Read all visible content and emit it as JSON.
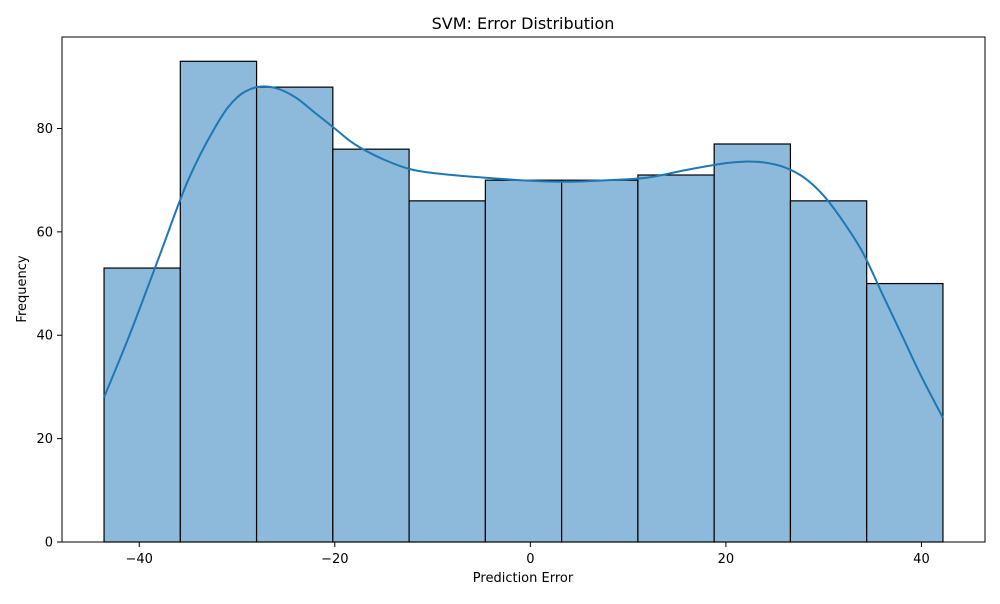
{
  "chart_data": {
    "type": "bar",
    "title": "SVM: Error Distribution",
    "xlabel": "Prediction Error",
    "ylabel": "Frequency",
    "xlim": [
      -47.9,
      46.5
    ],
    "ylim": [
      0,
      97.7
    ],
    "xticks": [
      -40,
      -20,
      0,
      20,
      40
    ],
    "yticks": [
      0,
      20,
      40,
      60,
      80
    ],
    "grid": false,
    "legend": "none",
    "bins": {
      "edges": [
        -43.6,
        -35.8,
        -28.0,
        -20.2,
        -12.4,
        -4.6,
        3.2,
        11.0,
        18.8,
        26.6,
        34.4,
        42.2
      ],
      "values": [
        53,
        93,
        88,
        76,
        66,
        70,
        70,
        71,
        77,
        66,
        50
      ]
    },
    "kde": {
      "x": [
        -43.6,
        -41,
        -38,
        -35,
        -32,
        -30,
        -28,
        -26,
        -24,
        -22,
        -20,
        -18,
        -15,
        -12,
        -8,
        -4,
        0,
        4,
        8,
        12,
        16,
        20,
        22,
        24,
        26,
        28,
        30,
        32,
        34,
        36,
        38,
        40,
        42.2
      ],
      "y": [
        28,
        40,
        55,
        70,
        81,
        86,
        88,
        87.8,
        86,
        83,
        80,
        77,
        74,
        72,
        71,
        70.4,
        69.9,
        69.7,
        70,
        70.5,
        72,
        73.3,
        73.6,
        73.4,
        72.5,
        70.5,
        67,
        62,
        56,
        48,
        40,
        32,
        24
      ]
    },
    "colors": {
      "bar_fill": "#8db9db",
      "bar_edge": "#000000",
      "kde_line": "#1f77b4",
      "axes": "#000000"
    }
  }
}
